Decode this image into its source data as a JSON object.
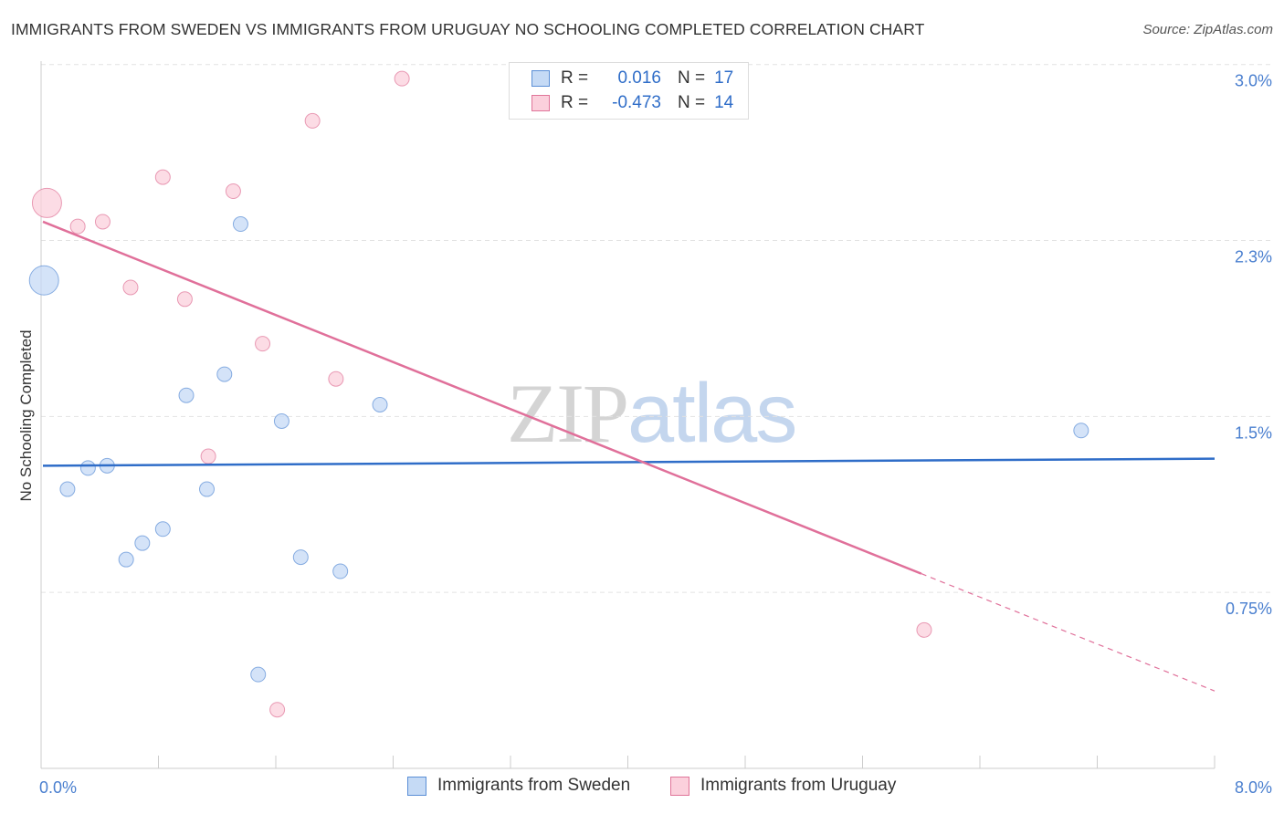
{
  "header": {
    "title": "IMMIGRANTS FROM SWEDEN VS IMMIGRANTS FROM URUGUAY NO SCHOOLING COMPLETED CORRELATION CHART",
    "source": "Source: ZipAtlas.com"
  },
  "watermark": {
    "zip": "ZIP",
    "atlas": "atlas"
  },
  "colors": {
    "sweden": "#5b8fd6",
    "sweden_fill": "#c5daf5",
    "sweden_line": "#2f6dc8",
    "uruguay": "#e07599",
    "uruguay_fill": "#fbd0dc",
    "uruguay_line": "#e0709a",
    "grid": "#e2e2e2",
    "axis_text": "#4a7fcf"
  },
  "stats_legend": [
    {
      "r_label": "R =",
      "r_value": "0.016",
      "n_label": "N =",
      "n_value": "17"
    },
    {
      "r_label": "R =",
      "r_value": "-0.473",
      "n_label": "N =",
      "n_value": "14"
    }
  ],
  "bottom_legend": [
    "Immigrants from Sweden",
    "Immigrants from Uruguay"
  ],
  "chart_data": {
    "type": "scatter",
    "title": "IMMIGRANTS FROM SWEDEN VS IMMIGRANTS FROM URUGUAY NO SCHOOLING COMPLETED CORRELATION CHART",
    "xlabel": "",
    "ylabel": "No Schooling Completed",
    "xlim": [
      0,
      8.0
    ],
    "ylim": [
      0,
      3.1
    ],
    "x_tick_labels": [
      "0.0%",
      "8.0%"
    ],
    "x_tick_values": [
      0,
      8.0
    ],
    "y_tick_labels": [
      "0.75%",
      "1.5%",
      "2.3%",
      "3.0%"
    ],
    "y_tick_values": [
      0.75,
      1.5,
      2.25,
      3.0
    ],
    "grid": true,
    "legend_position": "bottom",
    "series": [
      {
        "name": "Immigrants from Sweden",
        "r": 0.016,
        "n": 17,
        "points": [
          {
            "x": 0.02,
            "y": 2.08,
            "size": "large"
          },
          {
            "x": 0.18,
            "y": 1.19
          },
          {
            "x": 0.32,
            "y": 1.28
          },
          {
            "x": 0.45,
            "y": 1.29
          },
          {
            "x": 0.58,
            "y": 0.89
          },
          {
            "x": 0.69,
            "y": 0.96
          },
          {
            "x": 0.83,
            "y": 1.02
          },
          {
            "x": 0.99,
            "y": 1.59
          },
          {
            "x": 1.13,
            "y": 1.19
          },
          {
            "x": 1.25,
            "y": 1.68
          },
          {
            "x": 1.36,
            "y": 2.32
          },
          {
            "x": 1.48,
            "y": 0.4
          },
          {
            "x": 1.64,
            "y": 1.48
          },
          {
            "x": 1.77,
            "y": 0.9
          },
          {
            "x": 2.04,
            "y": 0.84
          },
          {
            "x": 2.31,
            "y": 1.55
          },
          {
            "x": 7.09,
            "y": 1.44
          }
        ],
        "trendline": {
          "x": [
            0,
            8.0
          ],
          "y": [
            1.29,
            1.32
          ]
        }
      },
      {
        "name": "Immigrants from Uruguay",
        "r": -0.473,
        "n": 14,
        "points": [
          {
            "x": 0.04,
            "y": 2.41,
            "size": "large"
          },
          {
            "x": 0.25,
            "y": 2.31
          },
          {
            "x": 0.42,
            "y": 2.33
          },
          {
            "x": 0.61,
            "y": 2.05
          },
          {
            "x": 0.83,
            "y": 2.52
          },
          {
            "x": 0.98,
            "y": 2.0
          },
          {
            "x": 1.14,
            "y": 1.33
          },
          {
            "x": 1.31,
            "y": 2.46
          },
          {
            "x": 1.51,
            "y": 1.81
          },
          {
            "x": 1.61,
            "y": 0.25
          },
          {
            "x": 1.85,
            "y": 2.76
          },
          {
            "x": 2.01,
            "y": 1.66
          },
          {
            "x": 2.46,
            "y": 2.94
          },
          {
            "x": 6.02,
            "y": 0.59
          }
        ],
        "trendline": {
          "x": [
            0,
            6.0
          ],
          "y": [
            2.33,
            0.83
          ]
        },
        "trendline_extension": {
          "x": [
            6.0,
            8.0
          ],
          "y": [
            0.83,
            0.33
          ]
        }
      }
    ]
  }
}
